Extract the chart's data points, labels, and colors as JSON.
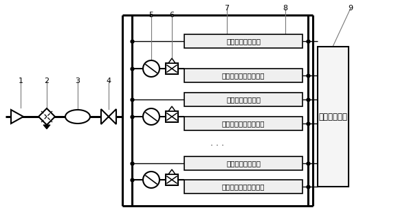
{
  "bg_color": "#ffffff",
  "box_normal": "其他正常用气设备",
  "box_intermit": "间歇性大流量用气设备",
  "plc_label": "可编程控制器",
  "num_labels": [
    "1",
    "2",
    "3",
    "4",
    "5",
    "6",
    "7",
    "8",
    "9"
  ],
  "lw_heavy": 2.2,
  "lw_med": 1.5,
  "lw_thin": 1.0
}
